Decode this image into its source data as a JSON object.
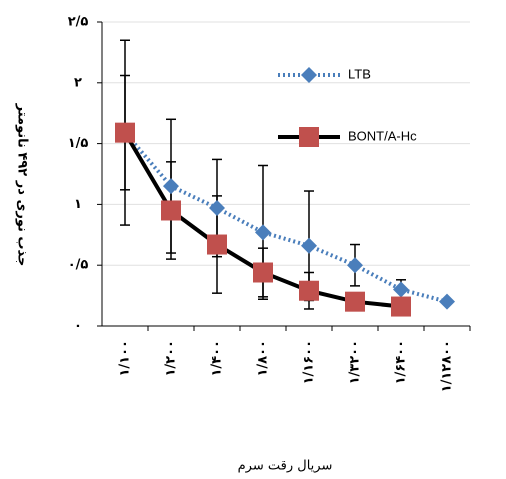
{
  "chart_data": {
    "type": "line",
    "y_label": "جذب نوری در ۴۹۲ نانومتر",
    "x_label": "سریال رقت سرم",
    "categories": [
      "۱/۱۰۰",
      "۱/۲۰۰",
      "۱/۴۰۰",
      "۱/۸۰۰",
      "۱/۱۶۰۰",
      "۱/۳۲۰۰",
      "۱/۶۴۰۰",
      "۱/۱۲۸۰۰"
    ],
    "series": [
      {
        "name": "LTB",
        "color": "#4a7ebb",
        "line_style": "dotted",
        "marker": "diamond",
        "values": [
          1.59,
          1.15,
          0.97,
          0.77,
          0.66,
          0.5,
          0.3,
          0.2
        ],
        "errors": [
          0.47,
          0.55,
          0.4,
          0.55,
          0.45,
          0.17,
          0.08,
          0
        ]
      },
      {
        "name": "BONT/A-Hc",
        "color": "#c0504d",
        "line_color": "#000000",
        "line_style": "solid",
        "marker": "square",
        "values": [
          1.59,
          0.95,
          0.67,
          0.44,
          0.29,
          0.2,
          0.16,
          null
        ],
        "errors": [
          0.76,
          0.4,
          0.4,
          0.2,
          0.15,
          0,
          0,
          null
        ]
      }
    ],
    "ylim": [
      0,
      2.5
    ],
    "yticks": [
      {
        "value": 0,
        "label": "۰"
      },
      {
        "value": 0.5,
        "label": "۰/۵"
      },
      {
        "value": 1,
        "label": "۱"
      },
      {
        "value": 1.5,
        "label": "۱/۵"
      },
      {
        "value": 2,
        "label": "۲"
      },
      {
        "value": 2.5,
        "label": "۲/۵"
      }
    ],
    "grid": true,
    "legend": "upper right"
  }
}
